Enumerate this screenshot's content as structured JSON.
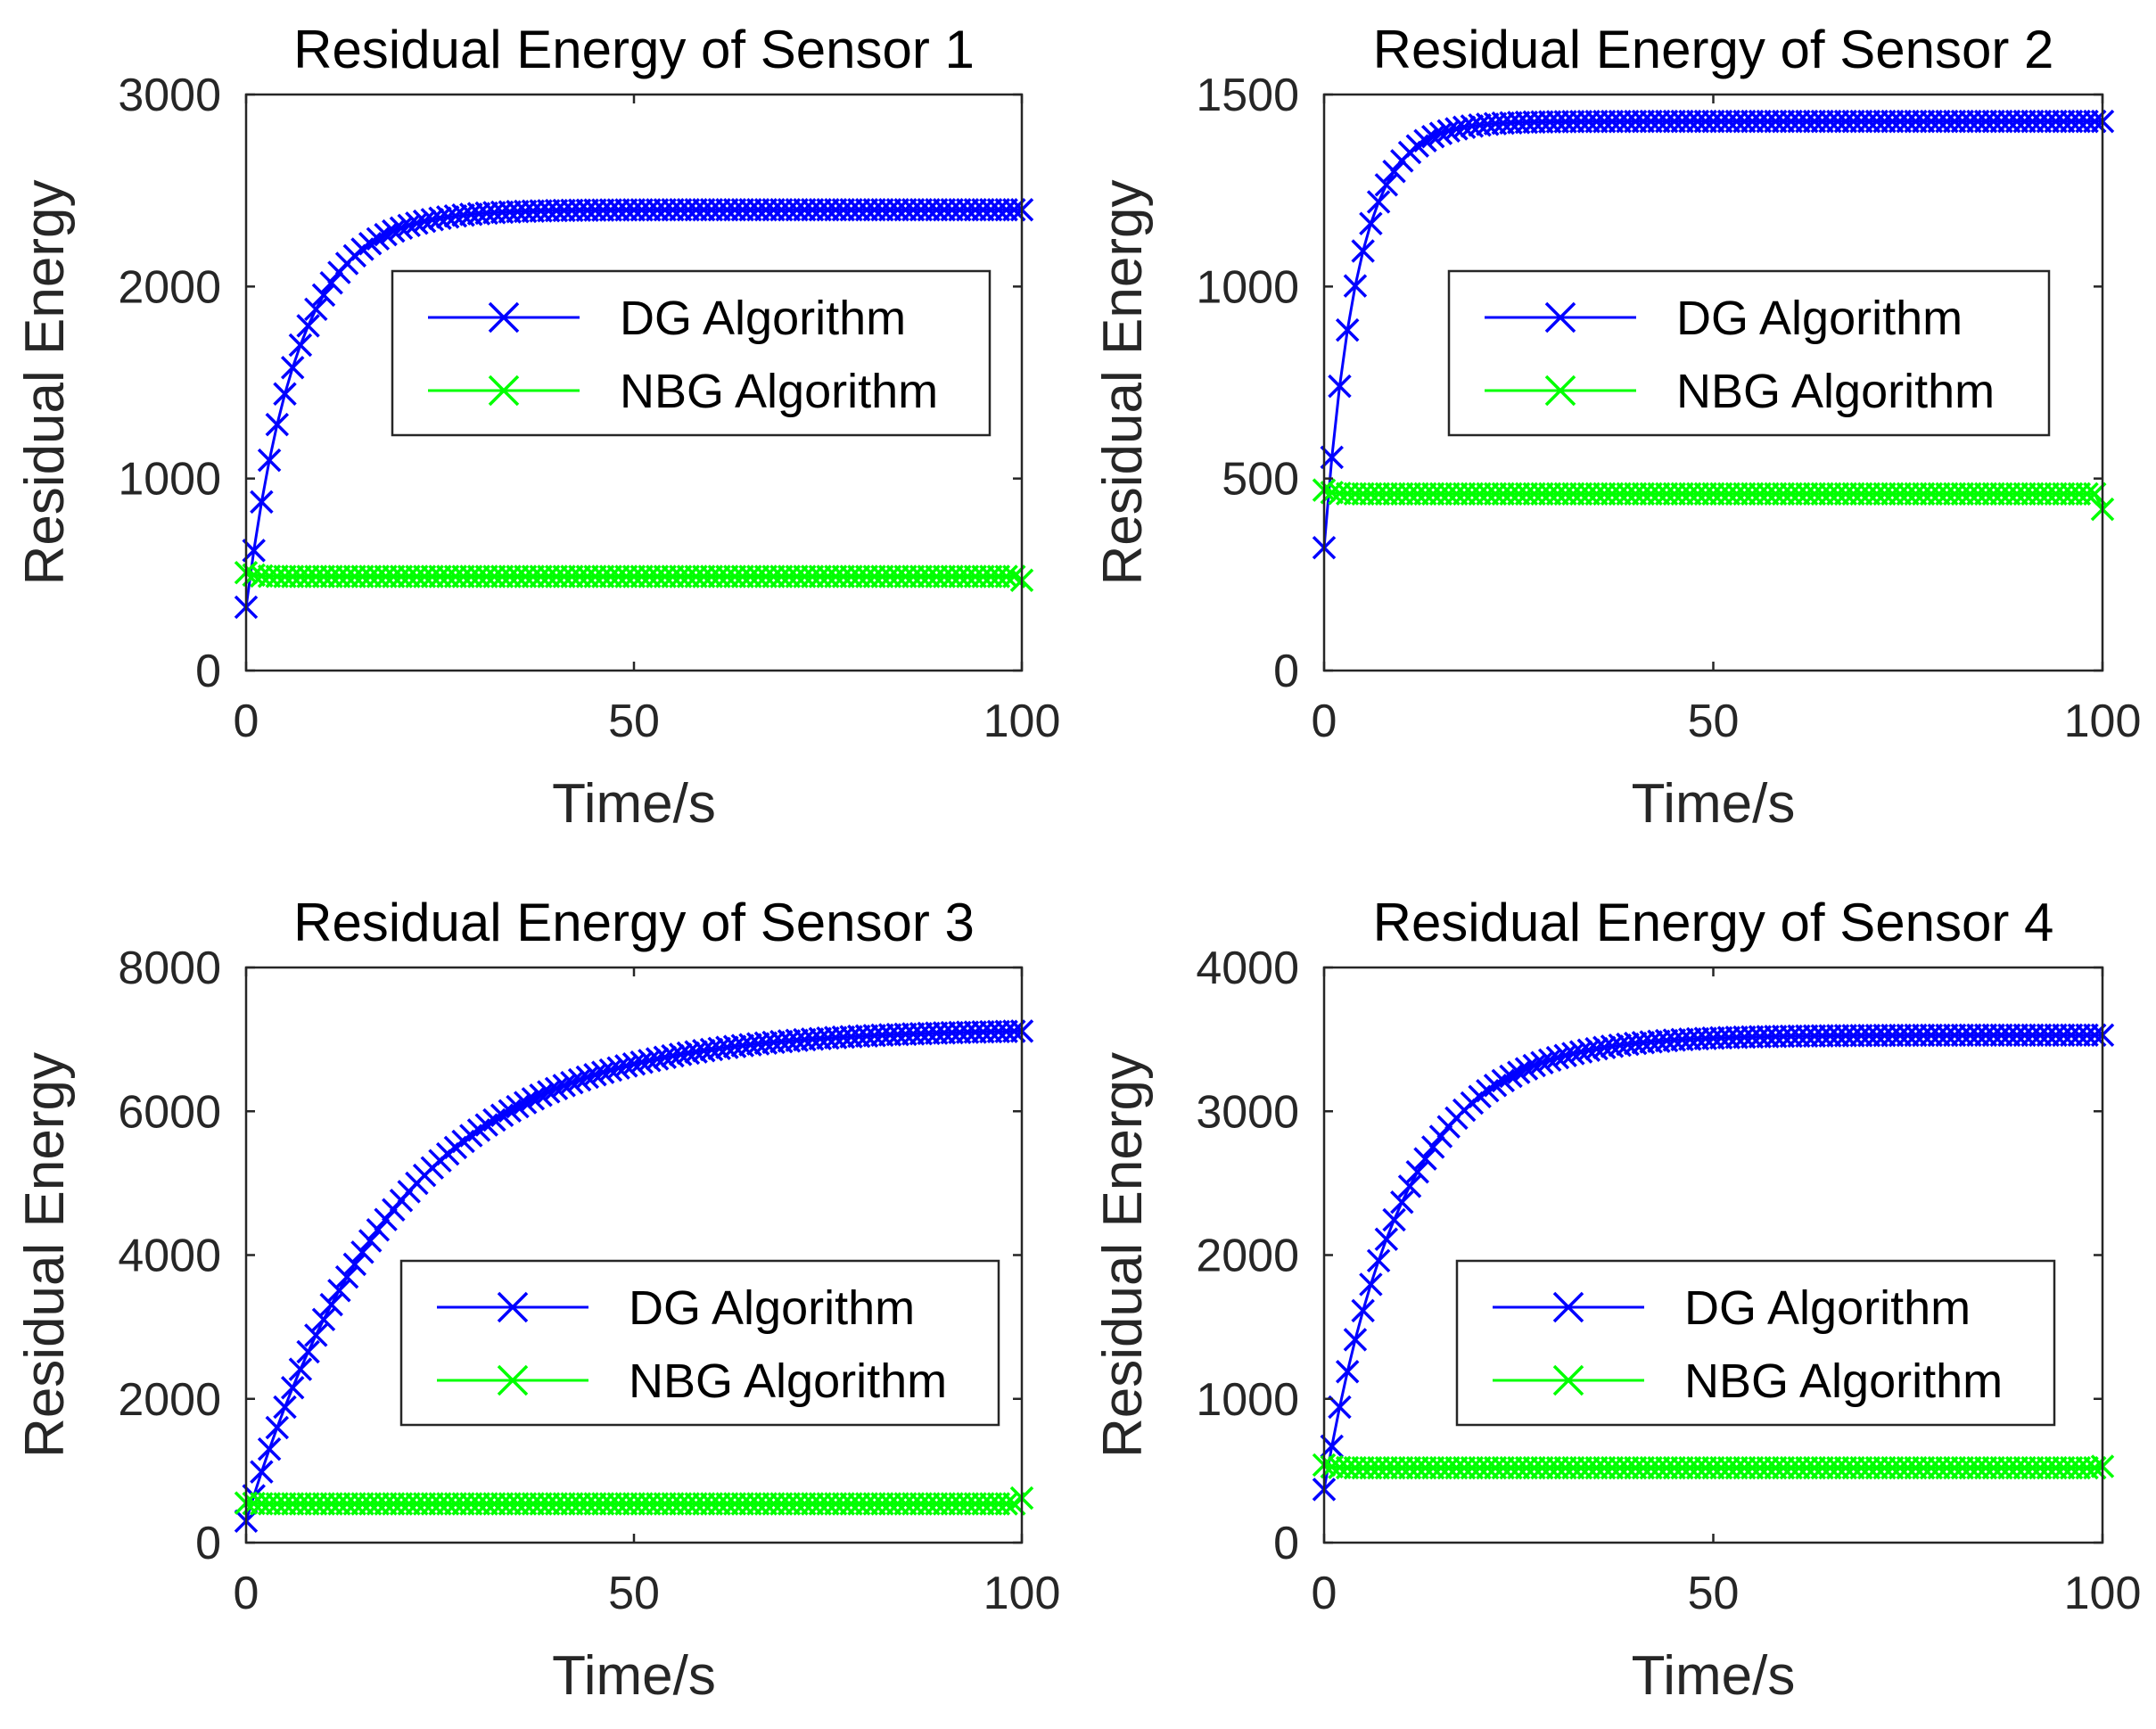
{
  "chart_data": [
    {
      "type": "line",
      "title": "Residual Energy of Sensor 1",
      "xlabel": "Time/s",
      "ylabel": "Residual Energy",
      "xlim": [
        0,
        100
      ],
      "ylim": [
        0,
        3000
      ],
      "xticks": [
        0,
        50,
        100
      ],
      "yticks": [
        0,
        1000,
        2000,
        3000
      ],
      "legend": [
        "DG Algorithm",
        "NBG Algorithm"
      ],
      "legend_position": "center-right",
      "series": [
        {
          "name": "DG Algorithm",
          "color": "#0000ff",
          "marker": "x",
          "start": 330,
          "final": 2400,
          "tau": 6.5
        },
        {
          "name": "NBG Algorithm",
          "color": "#00ff00",
          "marker": "x",
          "start": 510,
          "final": 490,
          "tau": 1,
          "end_value": 470
        }
      ]
    },
    {
      "type": "line",
      "title": "Residual Energy of Sensor 2",
      "xlabel": "Time/s",
      "ylabel": "Residual Energy",
      "xlim": [
        0,
        100
      ],
      "ylim": [
        0,
        1500
      ],
      "xticks": [
        0,
        50,
        100
      ],
      "yticks": [
        0,
        500,
        1000,
        1500
      ],
      "legend": [
        "DG Algorithm",
        "NBG Algorithm"
      ],
      "legend_position": "center-right",
      "series": [
        {
          "name": "DG Algorithm",
          "color": "#0000ff",
          "marker": "x",
          "start": 320,
          "final": 1430,
          "tau": 4.2
        },
        {
          "name": "NBG Algorithm",
          "color": "#00ff00",
          "marker": "x",
          "start": 470,
          "final": 460,
          "tau": 1,
          "end_value": 420
        }
      ]
    },
    {
      "type": "line",
      "title": "Residual Energy of Sensor 3",
      "xlabel": "Time/s",
      "ylabel": "Residual Energy",
      "xlim": [
        0,
        100
      ],
      "ylim": [
        0,
        8000
      ],
      "xticks": [
        0,
        50,
        100
      ],
      "yticks": [
        0,
        2000,
        4000,
        6000,
        8000
      ],
      "legend": [
        "DG Algorithm",
        "NBG Algorithm"
      ],
      "legend_position": "lower-right",
      "series": [
        {
          "name": "DG Algorithm",
          "color": "#0000ff",
          "marker": "x",
          "start": 300,
          "final": 7150,
          "tau": 19
        },
        {
          "name": "NBG Algorithm",
          "color": "#00ff00",
          "marker": "x",
          "start": 550,
          "final": 540,
          "tau": 1,
          "end_value": 620
        }
      ]
    },
    {
      "type": "line",
      "title": "Residual Energy of Sensor 4",
      "xlabel": "Time/s",
      "ylabel": "Residual Energy",
      "xlim": [
        0,
        100
      ],
      "ylim": [
        0,
        4000
      ],
      "xticks": [
        0,
        50,
        100
      ],
      "yticks": [
        0,
        1000,
        2000,
        3000,
        4000
      ],
      "legend": [
        "DG Algorithm",
        "NBG Algorithm"
      ],
      "legend_position": "lower-right",
      "series": [
        {
          "name": "DG Algorithm",
          "color": "#0000ff",
          "marker": "x",
          "start": 370,
          "final": 3530,
          "tau": 10
        },
        {
          "name": "NBG Algorithm",
          "color": "#00ff00",
          "marker": "x",
          "start": 540,
          "final": 520,
          "tau": 1,
          "end_value": 530
        }
      ]
    }
  ]
}
